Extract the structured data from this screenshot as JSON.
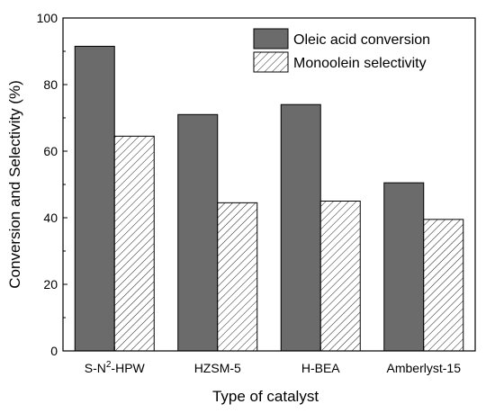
{
  "chart_data": {
    "type": "bar",
    "title": "",
    "xlabel": "Type of catalyst",
    "ylabel": "Conversion and Selectivity (%)",
    "ylim": [
      0,
      100
    ],
    "yticks": [
      "0",
      "20",
      "40",
      "60",
      "80",
      "100"
    ],
    "categories": [
      "S-N2-HPW",
      "HZSM-5",
      "H-BEA",
      "Amberlyst-15"
    ],
    "series": [
      {
        "name": "Oleic acid conversion",
        "values": [
          91.5,
          71,
          74,
          50.5
        ],
        "color": "#6b6b6b",
        "pattern": "solid"
      },
      {
        "name": "Monoolein selectivity",
        "values": [
          64.5,
          44.5,
          45,
          39.5
        ],
        "color": "#ffffff",
        "pattern": "hatch"
      }
    ],
    "legend_position": "top-right",
    "grid": false
  }
}
